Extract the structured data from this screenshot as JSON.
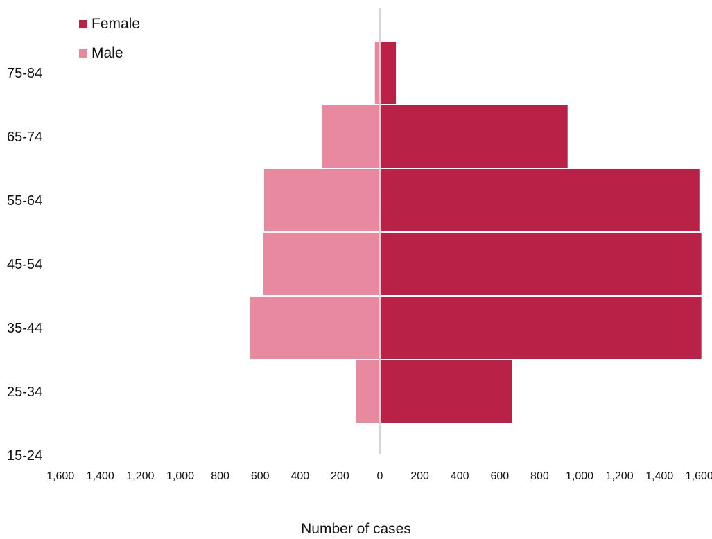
{
  "chart_data": {
    "type": "bar",
    "orientation": "horizontal-population-pyramid",
    "categories": [
      "75-84",
      "65-74",
      "55-64",
      "45-54",
      "35-44",
      "25-34",
      "15-24"
    ],
    "series": [
      {
        "name": "Female",
        "side": "right",
        "color": "#BA2146",
        "values": [
          80,
          940,
          1600,
          1610,
          1610,
          660,
          0
        ]
      },
      {
        "name": "Male",
        "side": "left",
        "color": "#E9899F",
        "values": [
          25,
          290,
          580,
          585,
          650,
          120,
          0
        ]
      }
    ],
    "x_ticks": [
      "1,600",
      "1,400",
      "1,200",
      "1,000",
      "800",
      "600",
      "400",
      "200",
      "0",
      "200",
      "400",
      "600",
      "800",
      "1,000",
      "1,200",
      "1,400",
      "1,600"
    ],
    "xlim": [
      -1600,
      1600
    ],
    "xlabel": "Number of cases",
    "ylabel": "",
    "title": "",
    "legend_position": "top-left",
    "grid": false
  }
}
